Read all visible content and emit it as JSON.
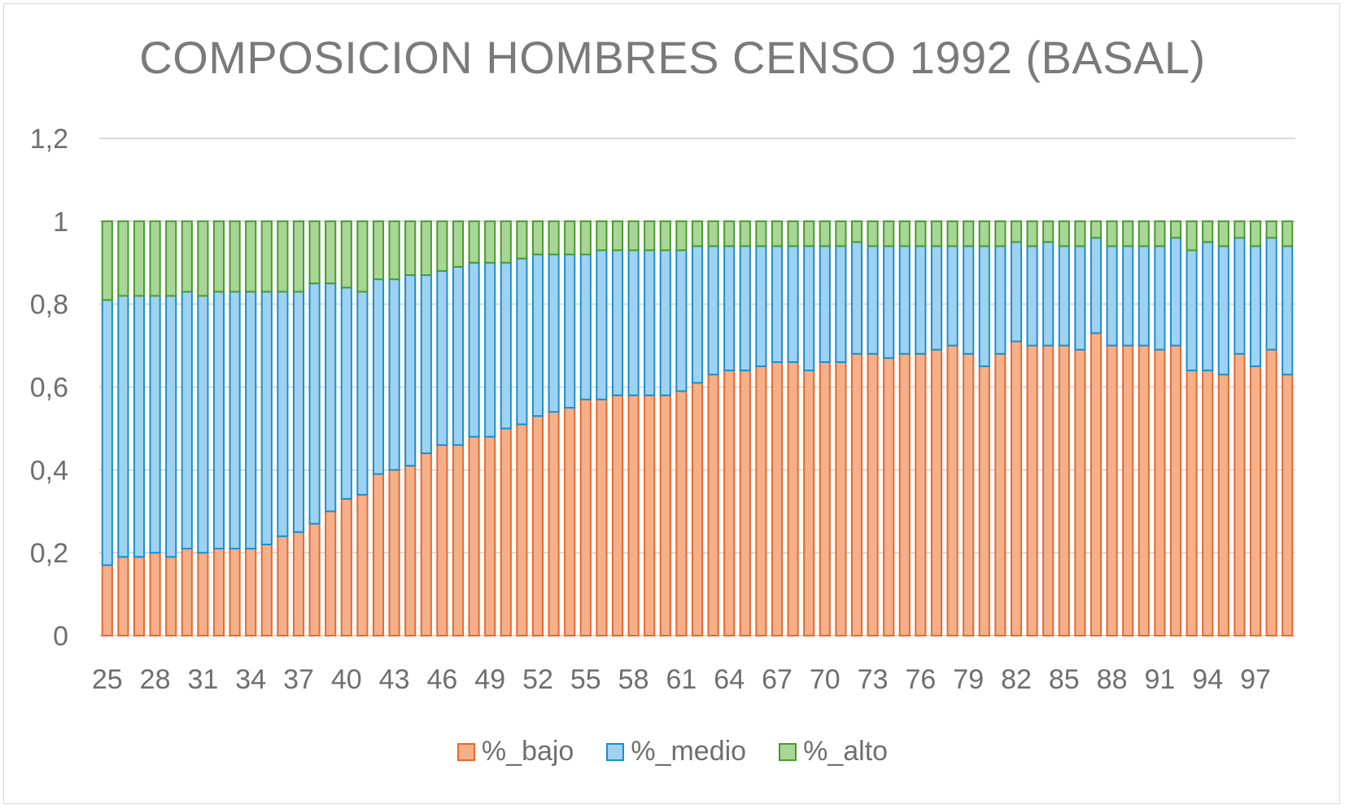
{
  "chart_data": {
    "type": "bar",
    "stacked": true,
    "title": "COMPOSICION HOMBRES CENSO 1992 (BASAL)",
    "xlabel": "",
    "ylabel": "",
    "ylim": [
      0,
      1.2
    ],
    "yticks": [
      "0",
      "0,2",
      "0,4",
      "0,6",
      "0,8",
      "1",
      "1,2"
    ],
    "x_tick_labels": [
      "25",
      "28",
      "31",
      "34",
      "37",
      "40",
      "43",
      "46",
      "49",
      "52",
      "55",
      "58",
      "61",
      "64",
      "67",
      "70",
      "73",
      "76",
      "79",
      "82",
      "85",
      "88",
      "91",
      "94",
      "97"
    ],
    "grid": true,
    "legend_position": "bottom",
    "categories": [
      25,
      26,
      27,
      28,
      29,
      30,
      31,
      32,
      33,
      34,
      35,
      36,
      37,
      38,
      39,
      40,
      41,
      42,
      43,
      44,
      45,
      46,
      47,
      48,
      49,
      50,
      51,
      52,
      53,
      54,
      55,
      56,
      57,
      58,
      59,
      60,
      61,
      62,
      63,
      64,
      65,
      66,
      67,
      68,
      69,
      70,
      71,
      72,
      73,
      74,
      75,
      76,
      77,
      78,
      79,
      80,
      81,
      82,
      83,
      84,
      85,
      86,
      87,
      88,
      89,
      90,
      91,
      92,
      93,
      94,
      95,
      96,
      97,
      98,
      99
    ],
    "series": [
      {
        "name": "%_bajo",
        "fill": "#f4b08a",
        "stroke": "#e8692e",
        "values": [
          0.17,
          0.19,
          0.19,
          0.2,
          0.19,
          0.21,
          0.2,
          0.21,
          0.21,
          0.21,
          0.22,
          0.24,
          0.25,
          0.27,
          0.3,
          0.33,
          0.34,
          0.39,
          0.4,
          0.41,
          0.44,
          0.46,
          0.46,
          0.48,
          0.48,
          0.5,
          0.51,
          0.53,
          0.54,
          0.55,
          0.57,
          0.57,
          0.58,
          0.58,
          0.58,
          0.58,
          0.59,
          0.61,
          0.63,
          0.64,
          0.64,
          0.65,
          0.66,
          0.66,
          0.64,
          0.66,
          0.66,
          0.68,
          0.68,
          0.67,
          0.68,
          0.68,
          0.69,
          0.7,
          0.68,
          0.65,
          0.68,
          0.71,
          0.7,
          0.7,
          0.7,
          0.69,
          0.73,
          0.7,
          0.7,
          0.7,
          0.69,
          0.7,
          0.64,
          0.64,
          0.63,
          0.68,
          0.65,
          0.69,
          0.63
        ]
      },
      {
        "name": "%_medio",
        "fill": "#9fd2f0",
        "stroke": "#1b8fcf",
        "values": [
          0.64,
          0.63,
          0.63,
          0.62,
          0.63,
          0.62,
          0.62,
          0.62,
          0.62,
          0.62,
          0.61,
          0.59,
          0.58,
          0.58,
          0.55,
          0.51,
          0.49,
          0.47,
          0.46,
          0.46,
          0.43,
          0.42,
          0.43,
          0.42,
          0.42,
          0.4,
          0.4,
          0.39,
          0.38,
          0.37,
          0.35,
          0.36,
          0.35,
          0.35,
          0.35,
          0.35,
          0.34,
          0.33,
          0.31,
          0.3,
          0.3,
          0.29,
          0.28,
          0.28,
          0.3,
          0.28,
          0.28,
          0.27,
          0.26,
          0.27,
          0.26,
          0.26,
          0.25,
          0.24,
          0.26,
          0.29,
          0.26,
          0.24,
          0.24,
          0.25,
          0.24,
          0.25,
          0.23,
          0.24,
          0.24,
          0.24,
          0.25,
          0.26,
          0.29,
          0.31,
          0.31,
          0.28,
          0.29,
          0.27,
          0.31
        ]
      },
      {
        "name": "%_alto",
        "fill": "#a8d696",
        "stroke": "#4a9b2c",
        "values": [
          0.19,
          0.18,
          0.18,
          0.18,
          0.18,
          0.17,
          0.18,
          0.17,
          0.17,
          0.17,
          0.17,
          0.17,
          0.17,
          0.15,
          0.15,
          0.16,
          0.17,
          0.14,
          0.14,
          0.13,
          0.13,
          0.12,
          0.11,
          0.1,
          0.1,
          0.1,
          0.09,
          0.08,
          0.08,
          0.08,
          0.08,
          0.07,
          0.07,
          0.07,
          0.07,
          0.07,
          0.07,
          0.06,
          0.06,
          0.06,
          0.06,
          0.06,
          0.06,
          0.06,
          0.06,
          0.06,
          0.06,
          0.05,
          0.06,
          0.06,
          0.06,
          0.06,
          0.06,
          0.06,
          0.06,
          0.06,
          0.06,
          0.05,
          0.06,
          0.05,
          0.06,
          0.06,
          0.04,
          0.06,
          0.06,
          0.06,
          0.06,
          0.04,
          0.07,
          0.05,
          0.06,
          0.04,
          0.06,
          0.04,
          0.06
        ]
      }
    ]
  }
}
